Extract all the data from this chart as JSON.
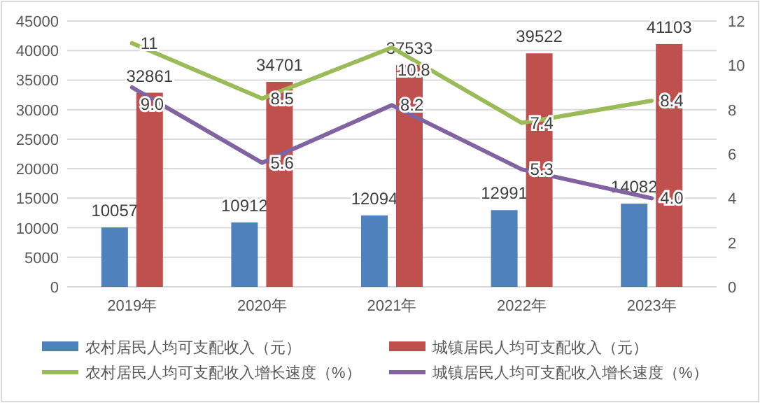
{
  "chart_data": {
    "type": "bar",
    "categories": [
      "2019年",
      "2020年",
      "2021年",
      "2022年",
      "2023年"
    ],
    "series": [
      {
        "name": "农村居民人均可支配收入（元）",
        "type": "bar",
        "color": "#4f81bd",
        "values": [
          10057,
          10912,
          12094,
          12991,
          14082
        ],
        "value_labels": [
          "10057",
          "10912",
          "12094",
          "12991",
          "14082"
        ]
      },
      {
        "name": "城镇居民人均可支配收入（元）",
        "type": "bar",
        "color": "#c0504d",
        "values": [
          32861,
          34701,
          37533,
          39522,
          41103
        ],
        "value_labels": [
          "32861",
          "34701",
          "37533",
          "39522",
          "41103"
        ]
      },
      {
        "name": "农村居民人均可支配收入增长速度（%）",
        "type": "line",
        "axis": "y2",
        "color": "#9bbb59",
        "values": [
          11,
          8.5,
          10.8,
          7.4,
          8.4
        ],
        "value_labels": [
          "11",
          "8.5",
          "10.8",
          "7.4",
          "8.4"
        ]
      },
      {
        "name": "城镇居民人均可支配收入增长速度（%）",
        "type": "line",
        "axis": "y2",
        "color": "#8064a2",
        "values": [
          9.0,
          5.6,
          8.2,
          5.3,
          4.0
        ],
        "value_labels": [
          "9.0",
          "5.6",
          "8.2",
          "5.3",
          "4.0"
        ]
      }
    ],
    "ylim": [
      0,
      45000
    ],
    "yticks": [
      0,
      5000,
      10000,
      15000,
      20000,
      25000,
      30000,
      35000,
      40000,
      45000
    ],
    "y2lim": [
      0,
      12
    ],
    "y2ticks": [
      0,
      2,
      4,
      6,
      8,
      10,
      12
    ],
    "grid": "y",
    "legend": "bottom",
    "marker": "none",
    "line_style": "solid"
  }
}
